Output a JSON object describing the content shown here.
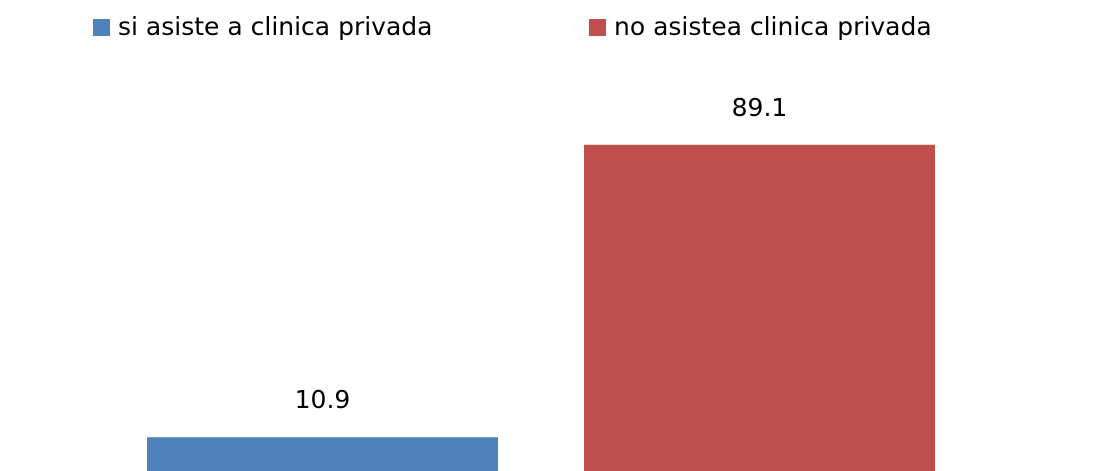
{
  "chart_data": {
    "type": "bar",
    "categories": [
      null
    ],
    "series": [
      {
        "name": "si asiste  a clinica privada",
        "color": "#4f81bd",
        "values": [
          10.9
        ]
      },
      {
        "name": "no asistea clinica privada",
        "color": "#c0504d",
        "values": [
          89.1
        ]
      }
    ],
    "data_labels": true
  }
}
